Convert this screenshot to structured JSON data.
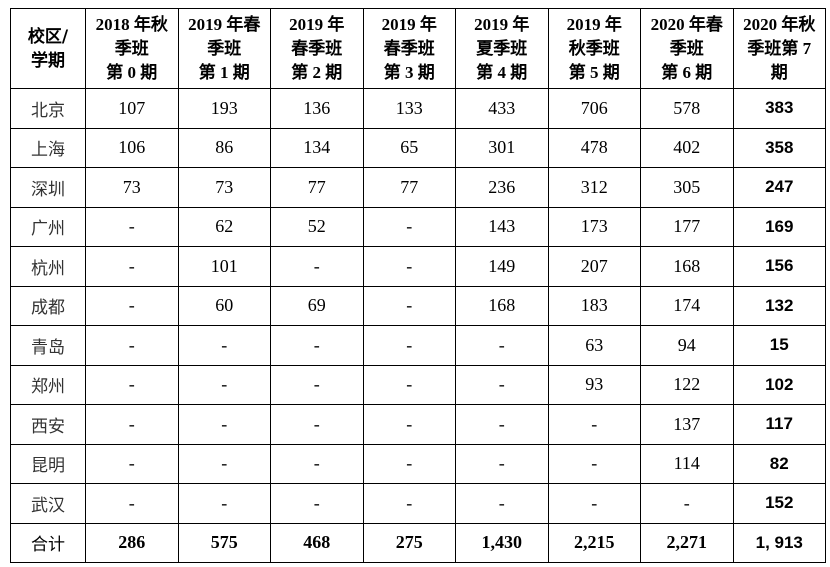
{
  "table": {
    "headers": [
      "校区/\n学期",
      "2018 年秋\n季班\n第 0 期",
      "2019 年春\n季班\n第 1 期",
      "2019 年\n春季班\n第 2 期",
      "2019 年\n春季班\n第 3 期",
      "2019 年\n夏季班\n第 4 期",
      "2019 年\n秋季班\n第 5 期",
      "2020 年春\n季班\n第 6 期",
      "2020 年秋\n季班第 7\n期"
    ],
    "rows": [
      [
        "北京",
        "107",
        "193",
        "136",
        "133",
        "433",
        "706",
        "578",
        "383"
      ],
      [
        "上海",
        "106",
        "86",
        "134",
        "65",
        "301",
        "478",
        "402",
        "358"
      ],
      [
        "深圳",
        "73",
        "73",
        "77",
        "77",
        "236",
        "312",
        "305",
        "247"
      ],
      [
        "广州",
        "-",
        "62",
        "52",
        "-",
        "143",
        "173",
        "177",
        "169"
      ],
      [
        "杭州",
        "-",
        "101",
        "-",
        "-",
        "149",
        "207",
        "168",
        "156"
      ],
      [
        "成都",
        "-",
        "60",
        "69",
        "-",
        "168",
        "183",
        "174",
        "132"
      ],
      [
        "青岛",
        "-",
        "-",
        "-",
        "-",
        "-",
        "63",
        "94",
        "15"
      ],
      [
        "郑州",
        "-",
        "-",
        "-",
        "-",
        "-",
        "93",
        "122",
        "102"
      ],
      [
        "西安",
        "-",
        "-",
        "-",
        "-",
        "-",
        "-",
        "137",
        "117"
      ],
      [
        "昆明",
        "-",
        "-",
        "-",
        "-",
        "-",
        "-",
        "114",
        "82"
      ],
      [
        "武汉",
        "-",
        "-",
        "-",
        "-",
        "-",
        "-",
        "-",
        "152"
      ]
    ],
    "total": [
      "合计",
      "286",
      "575",
      "468",
      "275",
      "1,430",
      "2,215",
      "2,271",
      "1, 913"
    ]
  }
}
